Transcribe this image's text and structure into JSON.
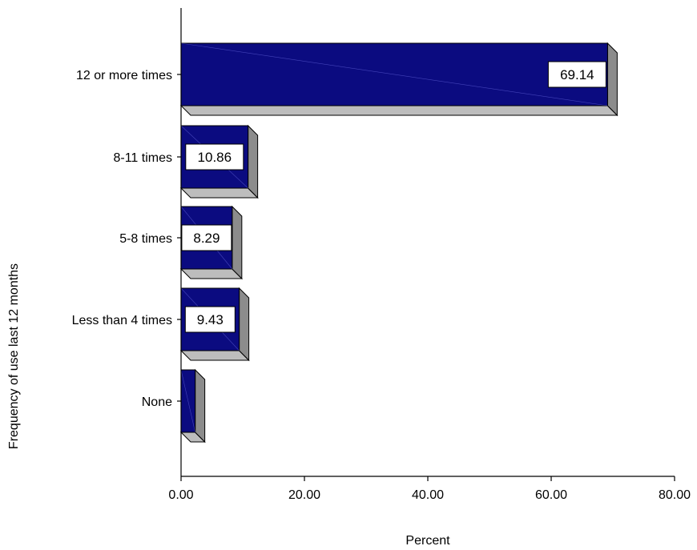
{
  "chart_data": {
    "type": "bar",
    "orientation": "horizontal",
    "style": "3d",
    "categories": [
      "12 or more times",
      "8-11 times",
      "5-8 times",
      "Less than 4 times",
      "None"
    ],
    "values": [
      69.14,
      10.86,
      8.29,
      9.43,
      2.29
    ],
    "data_labels": [
      "69.14",
      "10.86",
      "8.29",
      "9.43",
      ""
    ],
    "xlabel": "Percent",
    "ylabel": "Frequency of use last 12 months",
    "xlim": [
      0,
      80
    ],
    "x_ticks": [
      "0.00",
      "20.00",
      "40.00",
      "60.00",
      "80.00"
    ],
    "grid": false,
    "legend": "none",
    "colors": {
      "bar_front": "#0b0b80",
      "bar_side": "#8c8c8c",
      "bar_top": "#bdbdbd",
      "axis": "#000000",
      "label_box": "#ffffff"
    }
  }
}
